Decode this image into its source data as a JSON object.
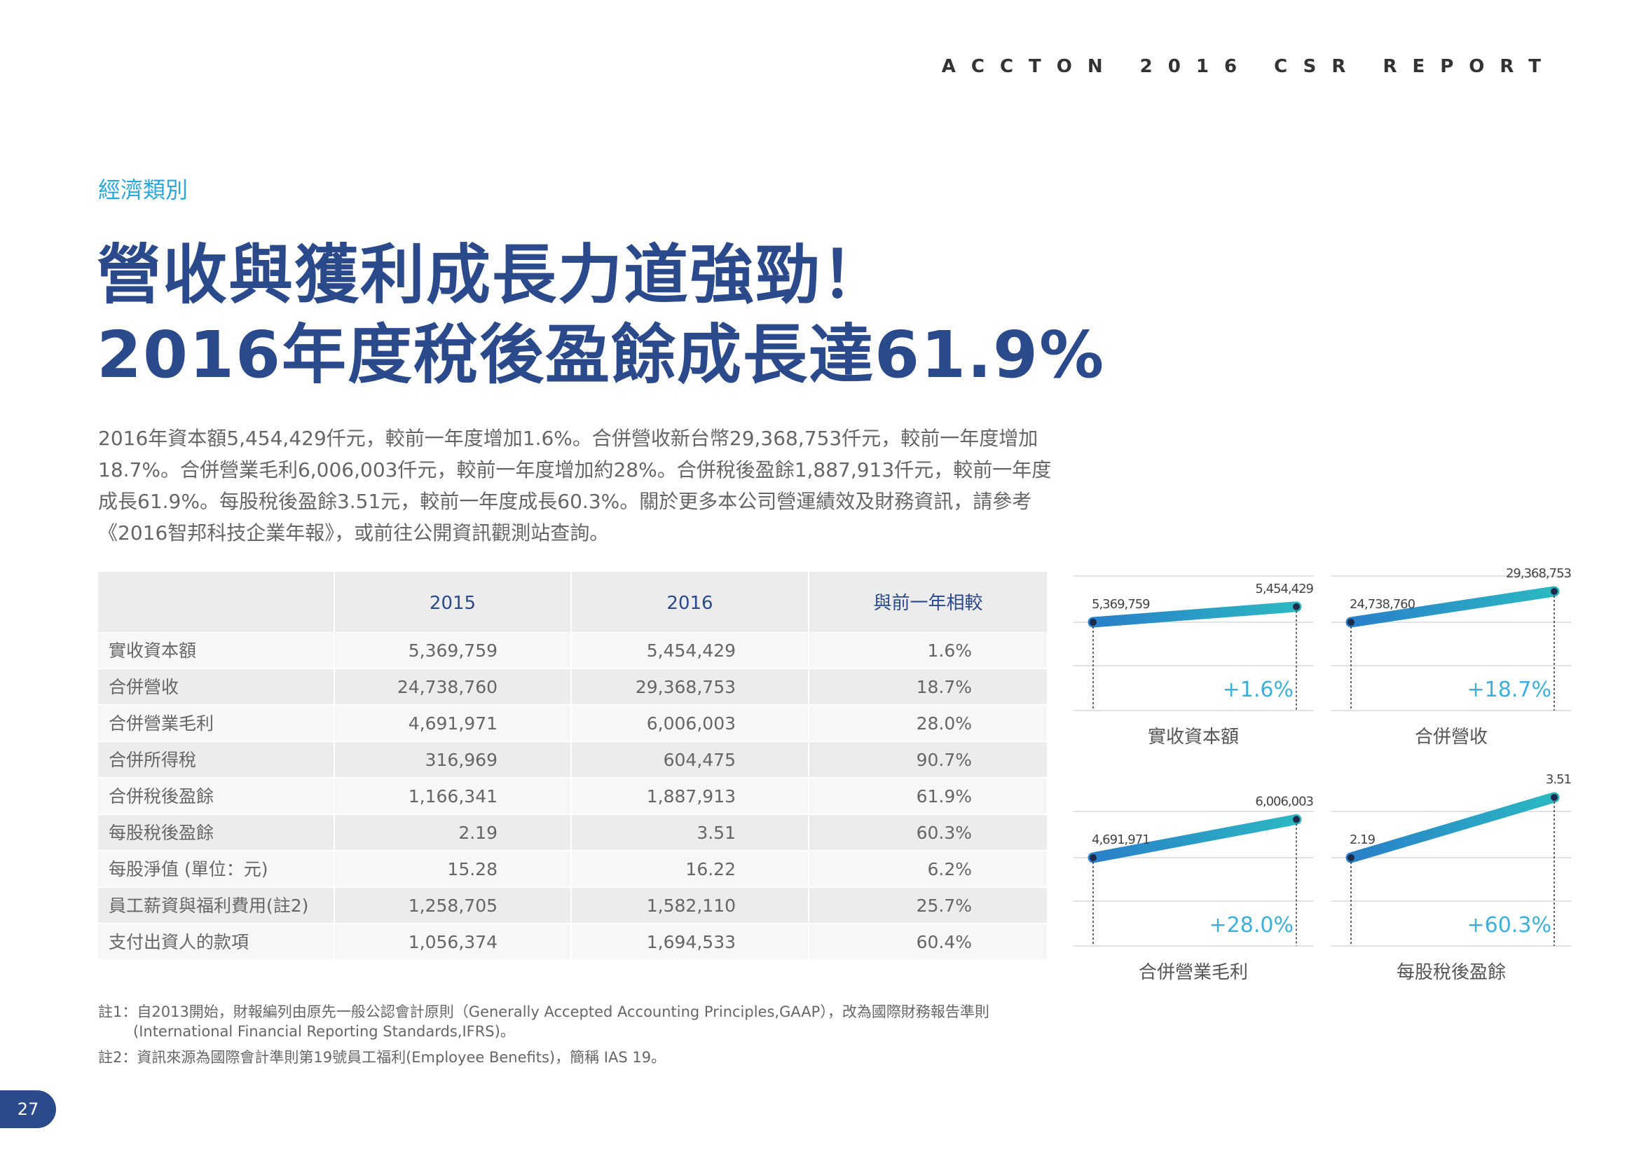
{
  "header": {
    "title": "ACCTON 2016 CSR REPORT"
  },
  "section": "經濟類別",
  "title": [
    "營收與獲利成長力道強勁！",
    "2016年度稅後盈餘成長達61.9%"
  ],
  "paragraph": [
    "2016年資本額5,454,429仟元，較前一年度增加1.6%。合併營收新台幣29,368,753仟元，較前一年度增加",
    "18.7%。合併營業毛利6,006,003仟元，較前一年度增加約28%。合併稅後盈餘1,887,913仟元，較前一年度",
    "成長61.9%。每股稅後盈餘3.51元，較前一年度成長60.3%。關於更多本公司營運績效及財務資訊，請參考",
    "《2016智邦科技企業年報》，或前往公開資訊觀測站查詢。"
  ],
  "table": {
    "headers": [
      "2015",
      "2016",
      "與前一年相較"
    ],
    "rows": [
      [
        "實收資本額",
        "5,369,759",
        "5,454,429",
        "1.6%"
      ],
      [
        "合併營收",
        "24,738,760",
        "29,368,753",
        "18.7%"
      ],
      [
        "合併營業毛利",
        "4,691,971",
        "6,006,003",
        "28.0%"
      ],
      [
        "合併所得稅",
        "316,969",
        "604,475",
        "90.7%"
      ],
      [
        "合併稅後盈餘",
        "1,166,341",
        "1,887,913",
        "61.9%"
      ],
      [
        "每股稅後盈餘",
        "2.19",
        "3.51",
        "60.3%"
      ],
      [
        "每股淨值 (單位：元)",
        "15.28",
        "16.22",
        "6.2%"
      ],
      [
        "員工薪資與福利費用(註2)",
        "1,258,705",
        "1,582,110",
        "25.7%"
      ],
      [
        "支付出資人的款項",
        "1,056,374",
        "1,694,533",
        "60.4%"
      ]
    ]
  },
  "charts": [
    {
      "type": "line",
      "caption": "實收資本額",
      "values": [
        5369759,
        5454429
      ],
      "value_labels": [
        "5,369,759",
        "5,454,429"
      ],
      "change_label": "+1.6%"
    },
    {
      "type": "line",
      "caption": "合併營收",
      "values": [
        24738760,
        29368753
      ],
      "value_labels": [
        "24,738,760",
        "29,368,753"
      ],
      "change_label": "+18.7%"
    },
    {
      "type": "line",
      "caption": "合併營業毛利",
      "values": [
        4691971,
        6006003
      ],
      "value_labels": [
        "4,691,971",
        "6,006,003"
      ],
      "change_label": "+28.0%"
    },
    {
      "type": "line",
      "caption": "每股稅後盈餘",
      "values": [
        2.19,
        3.51
      ],
      "value_labels": [
        "2.19",
        "3.51"
      ],
      "change_label": "+60.3%"
    }
  ],
  "notes": [
    "註1：自2013開始，財報編列由原先一般公認會計原則（Generally Accepted Accounting Principles,GAAP），改為國際財務報告準則",
    "(International Financial Reporting Standards,IFRS)。",
    "註2：資訊來源為國際會計準則第19號員工福利(Employee Benefits)，簡稱 IAS 19。"
  ],
  "page_number": "27"
}
